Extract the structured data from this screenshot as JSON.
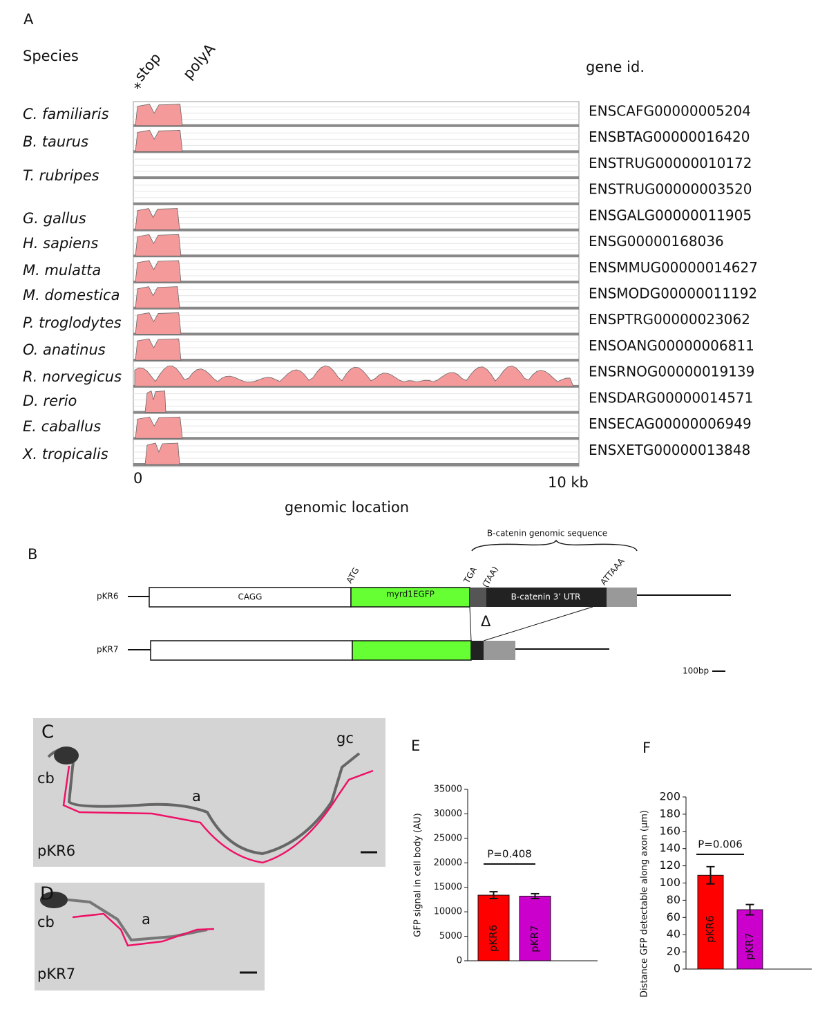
{
  "panel_a": {
    "label": "A",
    "species_header": "Species",
    "gene_header": "gene id.",
    "stop": "stop",
    "asterisk": "*",
    "polya": "polyA",
    "species": [
      "C. familiaris",
      "B. taurus",
      "T. rubripes",
      "G. gallus",
      "H. sapiens",
      "M. mulatta",
      "M. domestica",
      "P. troglodytes",
      "O. anatinus",
      "R. norvegicus",
      "D. rerio",
      "E. caballus",
      "X. tropicalis"
    ],
    "gene_ids": [
      "ENSCAFG00000005204",
      "ENSBTAG00000016420",
      "ENSTRUG00000010172",
      "ENSTRUG00000003520",
      "ENSGALG00000011905",
      "ENSG00000168036",
      "ENSMMUG00000014627",
      "ENSMODG00000011192",
      "ENSPTRG00000023062",
      "ENSOANG00000006811",
      "ENSRNOG00000019139",
      "ENSDARG00000014571",
      "ENSECAG00000006949",
      "ENSXETG00000013848"
    ],
    "x_start": "0",
    "x_end": "10 kb",
    "x_label": "genomic location"
  },
  "panel_b": {
    "label": "B",
    "bracket": "B-catenin genomic sequence",
    "atg": "ATG",
    "tga": "TGA",
    "taa": "(TAA)",
    "attaaa": "ATTAAA",
    "construct_1": "pKR6",
    "construct_2": "pKR7",
    "promoter": "CAGG",
    "reporter": "myrd1EGFP",
    "utr": "B-catenin 3’ UTR",
    "delta": "Δ",
    "scale": "100bp"
  },
  "panel_c": {
    "label": "C",
    "cb": "cb",
    "axon": "a",
    "gc": "gc",
    "construct": "pKR6"
  },
  "panel_d": {
    "label": "D",
    "cb": "cb",
    "axon": "a",
    "construct": "pKR7"
  },
  "chart_data": [
    {
      "type": "bar",
      "label": "E",
      "y_label": "GFP signal in cell body (AU)",
      "categories": [
        "pKR6",
        "pKR7"
      ],
      "values": [
        13400,
        13200
      ],
      "errors": [
        700,
        500
      ],
      "colors": [
        "#ff0000",
        "#cc00cc"
      ],
      "ylim": [
        0,
        35000
      ],
      "yticks": [
        0,
        5000,
        10000,
        15000,
        20000,
        25000,
        30000,
        35000
      ],
      "annotation": "P=0.408"
    },
    {
      "type": "bar",
      "label": "F",
      "y_label": "Distance GFP detectable along axon (µm)",
      "categories": [
        "pKR6",
        "pKR7"
      ],
      "values": [
        109,
        69
      ],
      "errors": [
        10,
        6
      ],
      "colors": [
        "#ff0000",
        "#cc00cc"
      ],
      "ylim": [
        0,
        200
      ],
      "yticks": [
        0,
        20,
        40,
        60,
        80,
        100,
        120,
        140,
        160,
        180,
        200
      ],
      "annotation": "P=0.006"
    }
  ]
}
